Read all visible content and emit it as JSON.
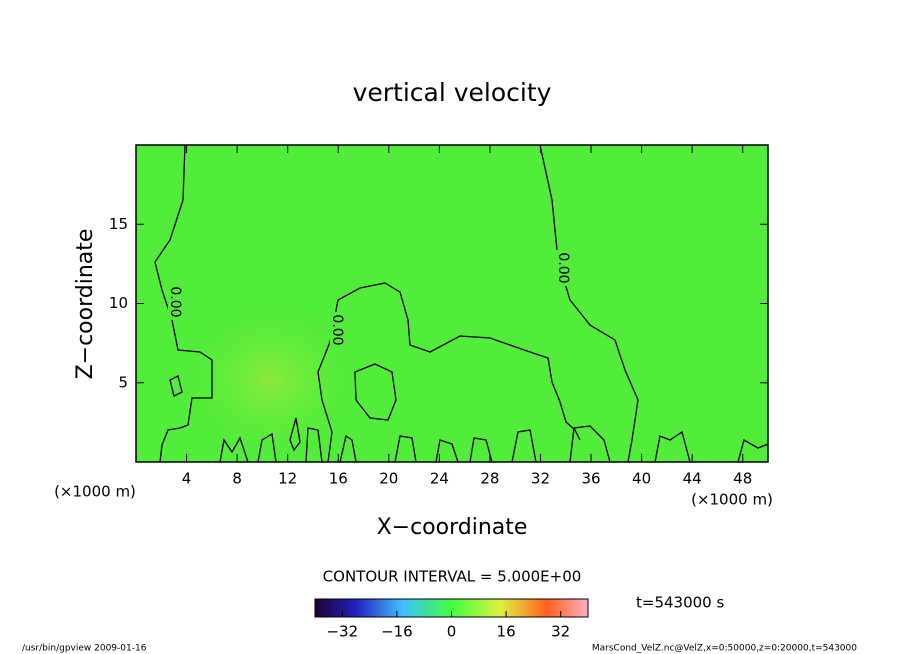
{
  "chart_data": {
    "type": "contour",
    "title": "vertical velocity",
    "xlabel": "X−coordinate",
    "ylabel": "Z−coordinate",
    "x_unit": "(×1000 m)",
    "y_unit": "(×1000 m)",
    "xlim": [
      0,
      50
    ],
    "xticks": [
      4,
      8,
      12,
      16,
      20,
      24,
      28,
      32,
      36,
      40,
      44,
      48
    ],
    "ylim": [
      0,
      20
    ],
    "yticks": [
      5,
      10,
      15
    ],
    "contour_levels": [
      0
    ],
    "contour_labels": [
      "0.00"
    ],
    "contour_interval": "CONTOUR INTERVAL = 5.000E+00",
    "time_label": "t=543000 s",
    "colorbar_lim": [
      -40,
      40
    ],
    "colorbar_ticks": [
      {
        "value": -32,
        "label": "−32"
      },
      {
        "value": -16,
        "label": "−16"
      },
      0,
      16,
      32
    ],
    "footer_left": "/usr/bin/gpview  2009-01-16",
    "footer_right": "MarsCond_VelZ.nc@VelZ,x=0:50000,z=0:20000,t=543000"
  }
}
